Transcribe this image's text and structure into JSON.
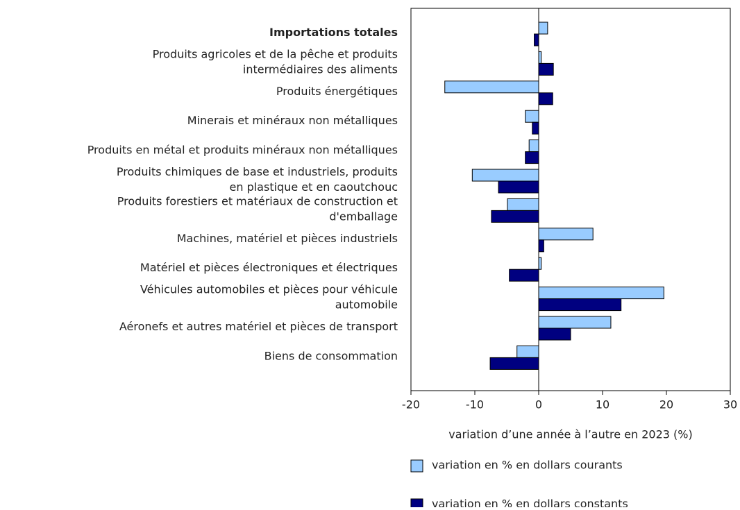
{
  "chart_data": {
    "type": "barh",
    "categories": [
      "Importations totales",
      "Produits agricoles et de la pêche et produits\nintermédiaires des aliments",
      "Produits énergétiques",
      "Minerais et minéraux non métalliques",
      "Produits en métal et produits minéraux non métalliques",
      "Produits chimiques de base et industriels, produits\nen plastique et en caoutchouc",
      "Produits forestiers et matériaux de construction et\nd'emballage",
      "Machines, matériel et pièces industriels",
      "Matériel et pièces électroniques et électriques",
      "Véhicules automobiles et pièces pour véhicule\nautomobile",
      "Aéronefs et autres matériel et pièces de transport",
      "Biens de consommation"
    ],
    "series": [
      {
        "name": "variation en % en dollars courants",
        "color": "#99ccff",
        "values": [
          1.4,
          0.4,
          -14.7,
          -2.1,
          -1.5,
          -10.4,
          -4.9,
          8.5,
          0.4,
          19.6,
          11.3,
          -3.4
        ]
      },
      {
        "name": "variation en % en dollars constants",
        "color": "#000080",
        "values": [
          -0.7,
          2.3,
          2.2,
          -1.0,
          -2.1,
          -6.3,
          -7.4,
          0.8,
          -4.6,
          12.9,
          5.0,
          -7.6
        ]
      }
    ],
    "xlabel": "variation d’une année à l’autre en 2023 (%)",
    "xlim": [
      -20,
      30
    ],
    "xticks": [
      -20,
      -10,
      0,
      10,
      20,
      30
    ],
    "grid": false
  }
}
